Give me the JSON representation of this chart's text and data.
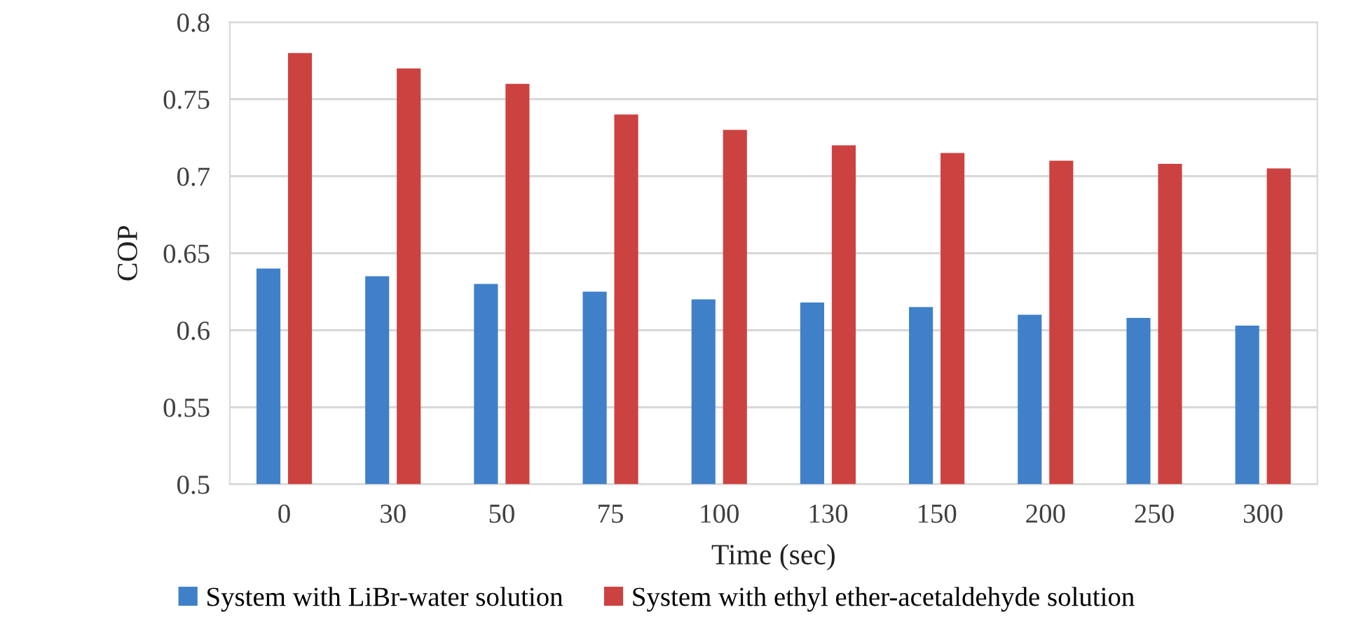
{
  "chart_data": {
    "type": "bar",
    "xlabel": "Time (sec)",
    "ylabel": "COP",
    "categories": [
      "0",
      "30",
      "50",
      "75",
      "100",
      "130",
      "150",
      "200",
      "250",
      "300"
    ],
    "series": [
      {
        "name": "System with LiBr-water solution",
        "color": "#4080c8",
        "values": [
          0.64,
          0.635,
          0.63,
          0.625,
          0.62,
          0.618,
          0.615,
          0.61,
          0.608,
          0.603
        ]
      },
      {
        "name": "System with ethyl ether-acetaldehyde solution",
        "color": "#cc4240",
        "values": [
          0.78,
          0.77,
          0.76,
          0.74,
          0.73,
          0.72,
          0.715,
          0.71,
          0.708,
          0.705
        ]
      }
    ],
    "ylim": [
      0.5,
      0.8
    ],
    "yticks": [
      0.5,
      0.55,
      0.6,
      0.65,
      0.7,
      0.75,
      0.8
    ],
    "grid": "y",
    "legend": "bottom"
  }
}
